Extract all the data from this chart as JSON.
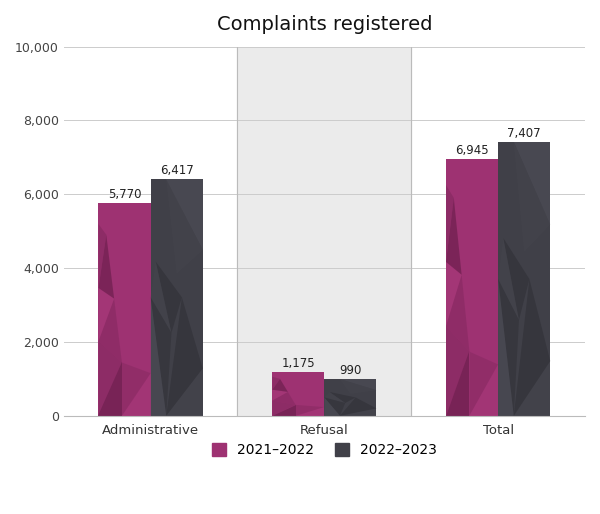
{
  "title": "Complaints registered",
  "categories": [
    "Administrative",
    "Refusal",
    "Total"
  ],
  "series": {
    "2021-2022": [
      5770,
      1175,
      6945
    ],
    "2022-2023": [
      6417,
      990,
      7407
    ]
  },
  "colors": {
    "2021-2022": "#9e3272",
    "2022-2023": "#404048"
  },
  "highlight_bg": "#ebebeb",
  "highlight_category": "Refusal",
  "ylim": [
    0,
    10000
  ],
  "yticks": [
    0,
    2000,
    4000,
    6000,
    8000,
    10000
  ],
  "bar_width": 0.3,
  "legend_labels": [
    "2021–2022",
    "2022–2023"
  ],
  "title_fontsize": 14,
  "label_fontsize": 8.5,
  "tick_fontsize": 9,
  "figsize": [
    6.0,
    5.14
  ],
  "dpi": 100
}
